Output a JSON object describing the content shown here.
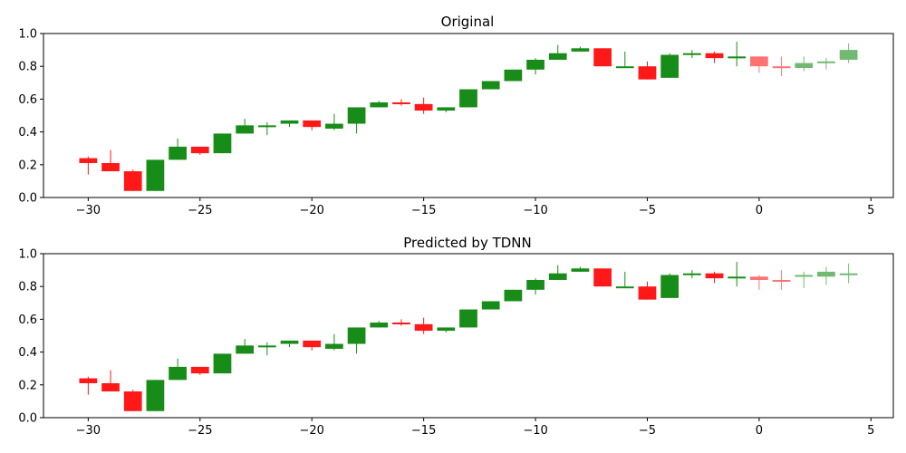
{
  "colors": {
    "up": "#008000",
    "down": "#ff0000"
  },
  "chart_data": [
    {
      "type": "candlestick",
      "title": "Original",
      "xlim": [
        -32,
        6
      ],
      "ylim": [
        0,
        1
      ],
      "xticks": [
        -30,
        -25,
        -20,
        -15,
        -10,
        -5,
        0,
        5
      ],
      "yticks": [
        0.0,
        0.2,
        0.4,
        0.6,
        0.8,
        1.0
      ],
      "ytick_labels": [
        "0.0",
        "0.2",
        "0.4",
        "0.6",
        "0.8",
        "1.0"
      ],
      "grid": false,
      "series": [
        {
          "kind": "history",
          "x": [
            -30,
            -29,
            -28,
            -27,
            -26,
            -25,
            -24,
            -23,
            -22,
            -21,
            -20,
            -19,
            -18,
            -17,
            -16,
            -15,
            -14,
            -13,
            -12,
            -11,
            -10,
            -9,
            -8,
            -7,
            -6,
            -5,
            -4,
            -3,
            -2,
            -1
          ],
          "open": [
            0.24,
            0.21,
            0.16,
            0.04,
            0.23,
            0.31,
            0.27,
            0.39,
            0.44,
            0.45,
            0.47,
            0.42,
            0.45,
            0.55,
            0.58,
            0.57,
            0.53,
            0.55,
            0.66,
            0.71,
            0.78,
            0.84,
            0.89,
            0.91,
            0.8,
            0.8,
            0.73,
            0.87,
            0.88,
            0.85
          ],
          "close": [
            0.21,
            0.16,
            0.04,
            0.23,
            0.31,
            0.27,
            0.39,
            0.44,
            0.44,
            0.47,
            0.43,
            0.45,
            0.55,
            0.58,
            0.57,
            0.53,
            0.55,
            0.66,
            0.71,
            0.78,
            0.84,
            0.88,
            0.91,
            0.8,
            0.8,
            0.72,
            0.87,
            0.88,
            0.85,
            0.86
          ],
          "high": [
            0.25,
            0.29,
            0.17,
            0.23,
            0.36,
            0.31,
            0.39,
            0.48,
            0.46,
            0.47,
            0.47,
            0.51,
            0.55,
            0.59,
            0.6,
            0.61,
            0.55,
            0.66,
            0.71,
            0.78,
            0.85,
            0.93,
            0.92,
            0.91,
            0.89,
            0.83,
            0.88,
            0.9,
            0.89,
            0.95
          ],
          "low": [
            0.14,
            0.16,
            0.04,
            0.04,
            0.23,
            0.26,
            0.27,
            0.39,
            0.38,
            0.43,
            0.41,
            0.41,
            0.39,
            0.55,
            0.56,
            0.51,
            0.52,
            0.55,
            0.66,
            0.71,
            0.75,
            0.84,
            0.89,
            0.8,
            0.8,
            0.72,
            0.73,
            0.85,
            0.82,
            0.8
          ]
        },
        {
          "kind": "future",
          "x": [
            0,
            1,
            2,
            3,
            4
          ],
          "open": [
            0.86,
            0.8,
            0.79,
            0.82,
            0.84
          ],
          "close": [
            0.8,
            0.79,
            0.82,
            0.83,
            0.9
          ],
          "high": [
            0.86,
            0.86,
            0.86,
            0.85,
            0.94
          ],
          "low": [
            0.76,
            0.74,
            0.77,
            0.78,
            0.82
          ]
        }
      ]
    },
    {
      "type": "candlestick",
      "title": "Predicted by TDNN",
      "xlim": [
        -32,
        6
      ],
      "ylim": [
        0,
        1
      ],
      "xticks": [
        -30,
        -25,
        -20,
        -15,
        -10,
        -5,
        0,
        5
      ],
      "yticks": [
        0.0,
        0.2,
        0.4,
        0.6,
        0.8,
        1.0
      ],
      "ytick_labels": [
        "0.0",
        "0.2",
        "0.4",
        "0.6",
        "0.8",
        "1.0"
      ],
      "grid": false,
      "series": [
        {
          "kind": "history",
          "x": [
            -30,
            -29,
            -28,
            -27,
            -26,
            -25,
            -24,
            -23,
            -22,
            -21,
            -20,
            -19,
            -18,
            -17,
            -16,
            -15,
            -14,
            -13,
            -12,
            -11,
            -10,
            -9,
            -8,
            -7,
            -6,
            -5,
            -4,
            -3,
            -2,
            -1
          ],
          "open": [
            0.24,
            0.21,
            0.16,
            0.04,
            0.23,
            0.31,
            0.27,
            0.39,
            0.44,
            0.45,
            0.47,
            0.42,
            0.45,
            0.55,
            0.58,
            0.57,
            0.53,
            0.55,
            0.66,
            0.71,
            0.78,
            0.84,
            0.89,
            0.91,
            0.8,
            0.8,
            0.73,
            0.87,
            0.88,
            0.85
          ],
          "close": [
            0.21,
            0.16,
            0.04,
            0.23,
            0.31,
            0.27,
            0.39,
            0.44,
            0.44,
            0.47,
            0.43,
            0.45,
            0.55,
            0.58,
            0.57,
            0.53,
            0.55,
            0.66,
            0.71,
            0.78,
            0.84,
            0.88,
            0.91,
            0.8,
            0.8,
            0.72,
            0.87,
            0.88,
            0.85,
            0.86
          ],
          "high": [
            0.25,
            0.29,
            0.17,
            0.23,
            0.36,
            0.31,
            0.39,
            0.48,
            0.46,
            0.47,
            0.47,
            0.51,
            0.55,
            0.59,
            0.6,
            0.61,
            0.55,
            0.66,
            0.71,
            0.78,
            0.85,
            0.93,
            0.92,
            0.91,
            0.89,
            0.83,
            0.88,
            0.9,
            0.89,
            0.95
          ],
          "low": [
            0.14,
            0.16,
            0.04,
            0.04,
            0.23,
            0.26,
            0.27,
            0.39,
            0.38,
            0.43,
            0.41,
            0.41,
            0.39,
            0.55,
            0.56,
            0.51,
            0.52,
            0.55,
            0.66,
            0.71,
            0.75,
            0.84,
            0.89,
            0.8,
            0.8,
            0.72,
            0.73,
            0.85,
            0.82,
            0.8
          ]
        },
        {
          "kind": "future",
          "x": [
            0,
            1,
            2,
            3,
            4
          ],
          "open": [
            0.86,
            0.84,
            0.86,
            0.86,
            0.87
          ],
          "close": [
            0.84,
            0.83,
            0.87,
            0.89,
            0.88
          ],
          "high": [
            0.87,
            0.9,
            0.89,
            0.92,
            0.94
          ],
          "low": [
            0.78,
            0.78,
            0.79,
            0.81,
            0.82
          ]
        }
      ]
    }
  ]
}
